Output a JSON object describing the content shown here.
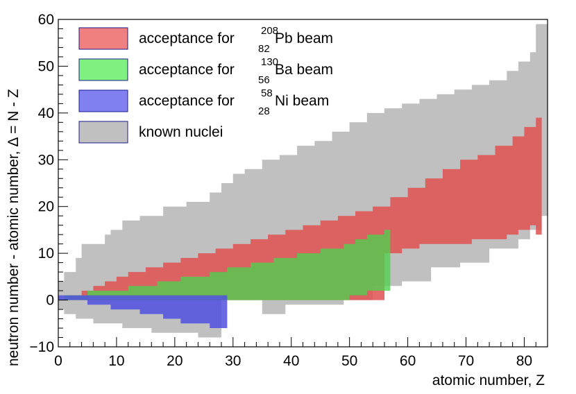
{
  "chart_data": {
    "type": "area",
    "title": "",
    "xlabel": "atomic number, Z",
    "ylabel": "neutron number - atomic number, Δ = N - Z",
    "xlim": [
      0,
      84
    ],
    "ylim": [
      -10,
      60
    ],
    "x_ticks": [
      "0",
      "10",
      "20",
      "30",
      "40",
      "50",
      "60",
      "70",
      "80"
    ],
    "y_ticks": [
      "−10",
      "0",
      "10",
      "20",
      "30",
      "40",
      "50",
      "60"
    ],
    "legend": {
      "position": "top-left",
      "entries": [
        {
          "prefix": "acceptance for ",
          "mass": "208",
          "charge": "82",
          "element": "Pb beam",
          "color": "#f08080"
        },
        {
          "prefix": "acceptance for ",
          "mass": "130",
          "charge": "56",
          "element": "Ba beam",
          "color": "#80f080"
        },
        {
          "prefix": "acceptance for ",
          "mass": "58",
          "charge": "28",
          "element": "Ni beam",
          "color": "#8080f0"
        },
        {
          "prefix": "",
          "mass": "",
          "charge": "",
          "element": "known nuclei",
          "color": "#c0c0c0"
        }
      ]
    },
    "series": [
      {
        "name": "known nuclei",
        "color": "#c0c0c0",
        "opacity": 1,
        "z_range": [
          1,
          84
        ],
        "upper": [
          [
            1,
            4
          ],
          [
            2,
            6
          ],
          [
            4,
            9
          ],
          [
            5,
            12
          ],
          [
            9,
            14
          ],
          [
            10,
            15
          ],
          [
            12,
            17
          ],
          [
            15,
            18
          ],
          [
            19,
            20
          ],
          [
            23,
            21
          ],
          [
            27,
            23
          ],
          [
            29,
            25
          ],
          [
            31,
            27
          ],
          [
            33,
            28
          ],
          [
            36,
            30
          ],
          [
            39,
            31
          ],
          [
            42,
            33
          ],
          [
            45,
            34
          ],
          [
            48,
            36
          ],
          [
            51,
            38
          ],
          [
            54,
            40
          ],
          [
            57,
            41
          ],
          [
            60,
            42
          ],
          [
            63,
            43
          ],
          [
            66,
            44
          ],
          [
            69,
            45
          ],
          [
            72,
            46
          ],
          [
            75,
            47
          ],
          [
            78,
            49
          ],
          [
            80,
            51
          ],
          [
            82,
            53
          ],
          [
            83,
            59
          ],
          [
            84,
            59
          ]
        ],
        "lower": [
          [
            1,
            -2
          ],
          [
            2,
            -3
          ],
          [
            4,
            -4
          ],
          [
            7,
            -5
          ],
          [
            12,
            -6
          ],
          [
            17,
            -7
          ],
          [
            21,
            -7
          ],
          [
            25,
            -8
          ],
          [
            28,
            -8
          ],
          [
            29,
            0
          ],
          [
            36,
            -3
          ],
          [
            40,
            -1
          ],
          [
            45,
            -1
          ],
          [
            50,
            0
          ],
          [
            55,
            3
          ],
          [
            60,
            4
          ],
          [
            65,
            7
          ],
          [
            70,
            8
          ],
          [
            75,
            11
          ],
          [
            80,
            13
          ],
          [
            82,
            15
          ],
          [
            84,
            18
          ]
        ]
      },
      {
        "name": "208Pb acceptance",
        "color": "#e05050",
        "opacity": 0.85,
        "z_range": [
          3,
          83
        ],
        "upper": [
          [
            3,
            1
          ],
          [
            5,
            2
          ],
          [
            7,
            3
          ],
          [
            9,
            4
          ],
          [
            11,
            5
          ],
          [
            13,
            6
          ],
          [
            16,
            7
          ],
          [
            19,
            8
          ],
          [
            22,
            9
          ],
          [
            25,
            10
          ],
          [
            28,
            11
          ],
          [
            31,
            12
          ],
          [
            34,
            13
          ],
          [
            37,
            14
          ],
          [
            40,
            15
          ],
          [
            43,
            16
          ],
          [
            46,
            17
          ],
          [
            49,
            18
          ],
          [
            52,
            19
          ],
          [
            55,
            20
          ],
          [
            58,
            22
          ],
          [
            61,
            24
          ],
          [
            64,
            26
          ],
          [
            67,
            28
          ],
          [
            70,
            30
          ],
          [
            73,
            31
          ],
          [
            76,
            33
          ],
          [
            79,
            35
          ],
          [
            81,
            37
          ],
          [
            83,
            39
          ]
        ],
        "lower": [
          [
            3,
            0
          ],
          [
            10,
            0
          ],
          [
            57,
            10
          ],
          [
            60,
            11
          ],
          [
            63,
            12
          ],
          [
            66,
            12
          ],
          [
            69,
            12
          ],
          [
            72,
            13
          ],
          [
            75,
            13
          ],
          [
            78,
            14
          ],
          [
            80,
            15
          ],
          [
            82,
            16
          ],
          [
            83,
            14
          ]
        ]
      },
      {
        "name": "130Ba acceptance",
        "color": "#50d050",
        "opacity": 0.8,
        "z_range": [
          2,
          57
        ],
        "upper": [
          [
            2,
            1
          ],
          [
            6,
            2
          ],
          [
            11,
            2
          ],
          [
            13,
            3
          ],
          [
            18,
            4
          ],
          [
            22,
            5
          ],
          [
            27,
            6
          ],
          [
            30,
            7
          ],
          [
            34,
            8
          ],
          [
            38,
            9
          ],
          [
            42,
            10
          ],
          [
            46,
            11
          ],
          [
            50,
            12
          ],
          [
            52,
            13
          ],
          [
            54,
            14
          ],
          [
            57,
            15
          ]
        ],
        "lower": [
          [
            2,
            0
          ],
          [
            29,
            0
          ],
          [
            43,
            0
          ],
          [
            49,
            0
          ],
          [
            51,
            1
          ],
          [
            54,
            2
          ],
          [
            57,
            2
          ]
        ]
      },
      {
        "name": "58Ni acceptance",
        "color": "#5050e0",
        "opacity": 0.85,
        "z_range": [
          1,
          29
        ],
        "upper": [
          [
            1,
            1
          ],
          [
            29,
            1
          ]
        ],
        "lower": [
          [
            1,
            0
          ],
          [
            6,
            -1
          ],
          [
            10,
            -2
          ],
          [
            15,
            -3
          ],
          [
            19,
            -4
          ],
          [
            22,
            -5
          ],
          [
            27,
            -6
          ],
          [
            29,
            -6
          ]
        ]
      }
    ]
  }
}
